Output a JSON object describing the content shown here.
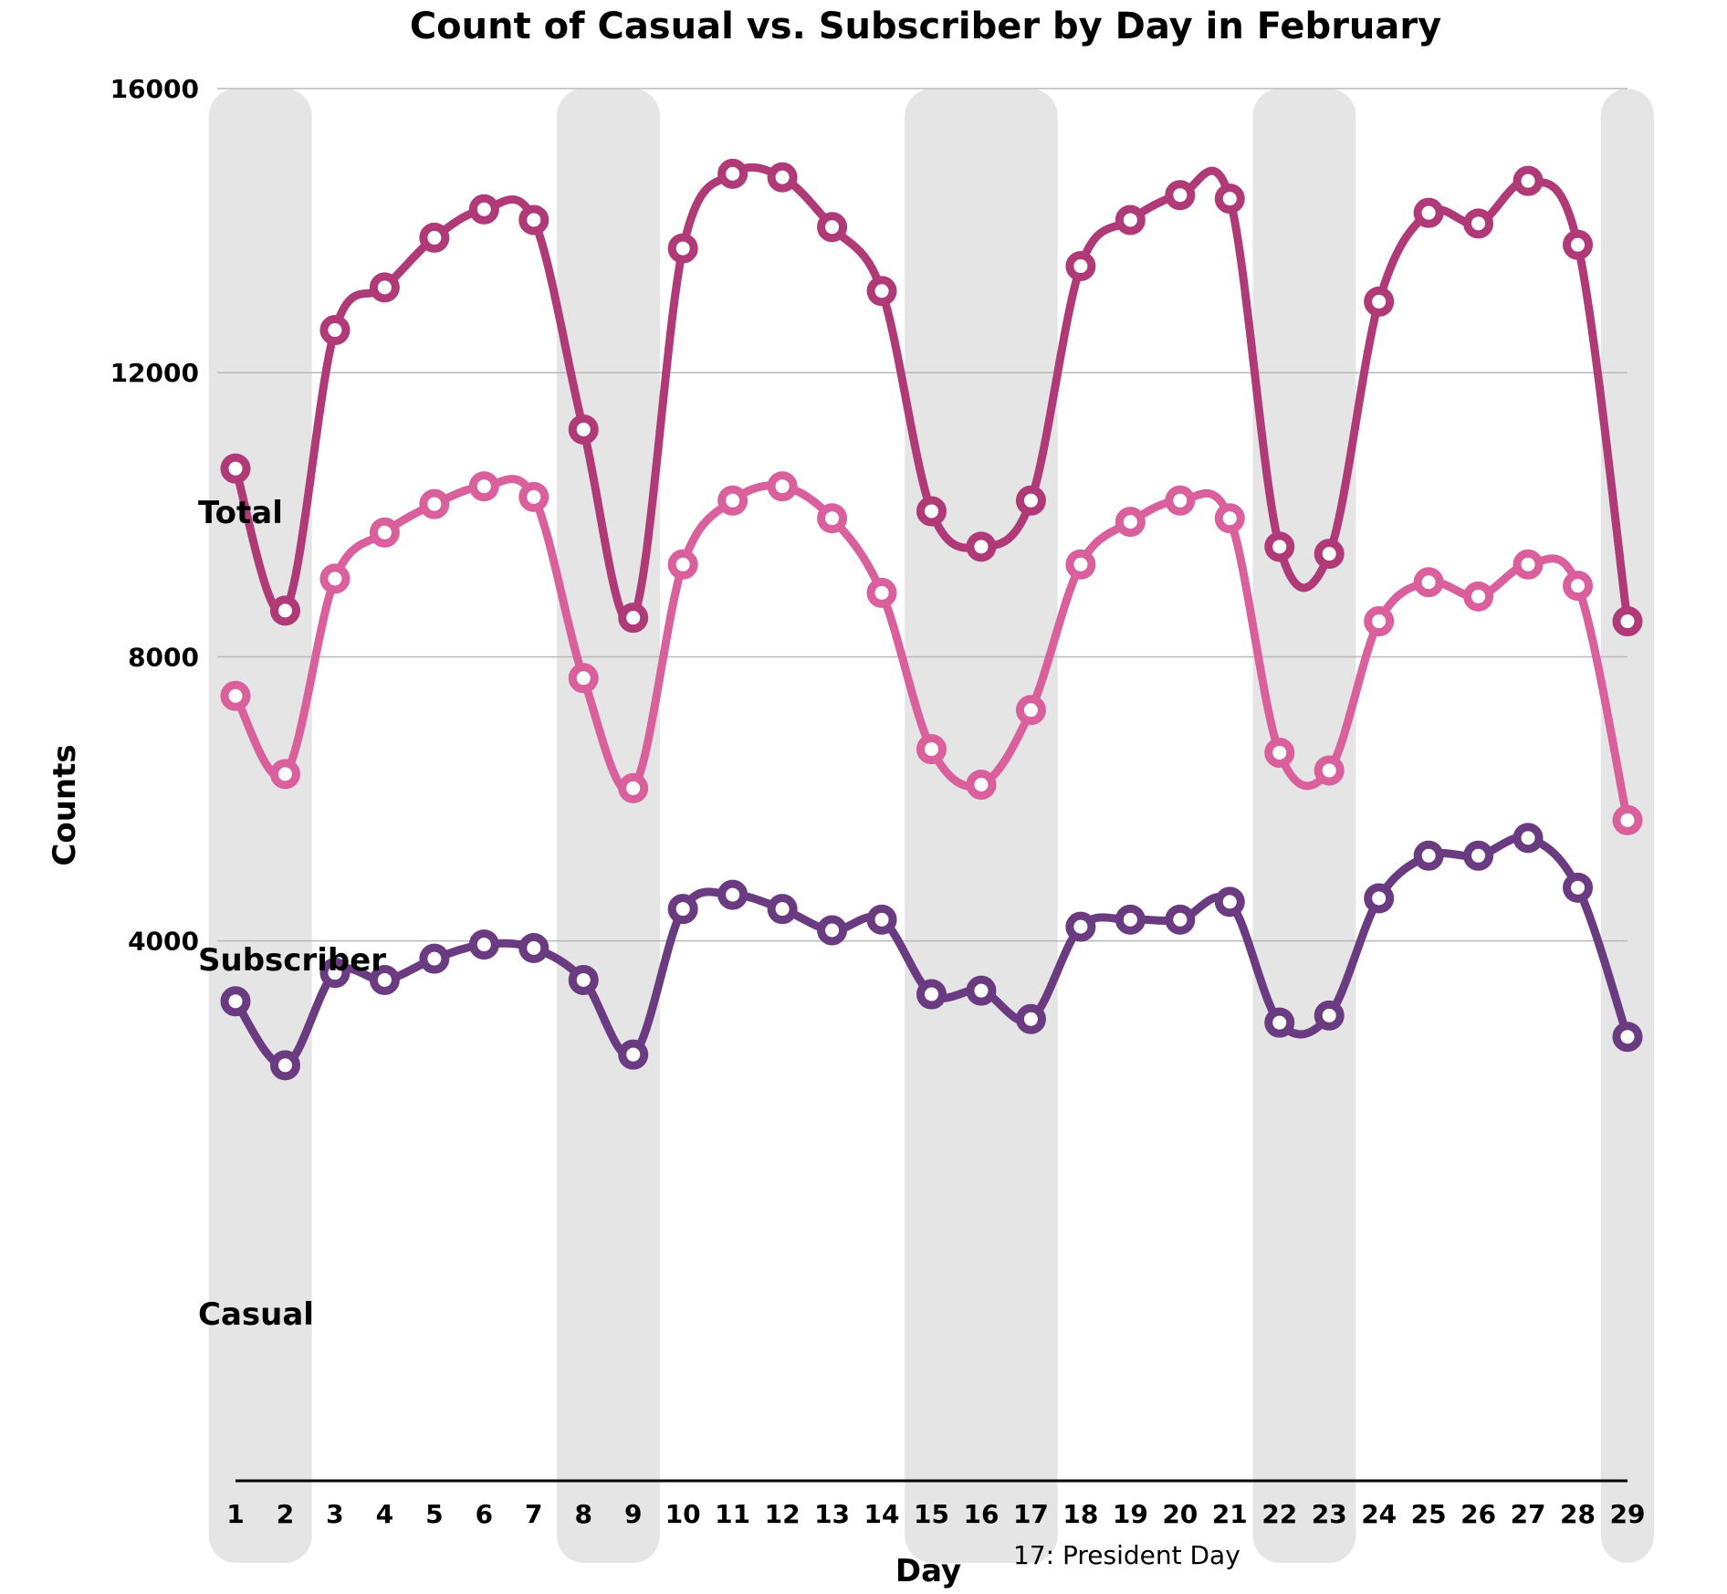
{
  "chart_data": {
    "type": "line",
    "title": "Count of Casual vs. Subscriber by Day in February",
    "xlabel": "Day",
    "ylabel": "Counts",
    "x": [
      1,
      2,
      3,
      4,
      5,
      6,
      7,
      8,
      9,
      10,
      11,
      12,
      13,
      14,
      15,
      16,
      17,
      18,
      19,
      20,
      21,
      22,
      23,
      24,
      25,
      26,
      27,
      28,
      29
    ],
    "ylim": [
      -3600,
      16000
    ],
    "yticks": [
      4000,
      8000,
      12000,
      16000
    ],
    "grid": true,
    "weekend_bands": [
      [
        1,
        2
      ],
      [
        8,
        9
      ],
      [
        15,
        17
      ],
      [
        22,
        23
      ],
      [
        29,
        29
      ]
    ],
    "annotation": "17: President Day",
    "series": [
      {
        "name": "Total",
        "color": "#b03a78",
        "values": [
          10650,
          8650,
          12600,
          13200,
          13900,
          14300,
          14150,
          11200,
          8550,
          13750,
          14800,
          14750,
          14050,
          13150,
          10050,
          9550,
          10200,
          13500,
          14150,
          14500,
          14450,
          9550,
          9450,
          13000,
          14250,
          14100,
          14700,
          13800,
          8500
        ]
      },
      {
        "name": "Subscriber",
        "color": "#d9609c",
        "values": [
          7450,
          6350,
          9100,
          9750,
          10150,
          10400,
          10250,
          7700,
          6150,
          9300,
          10200,
          10400,
          9950,
          8900,
          6700,
          6200,
          7250,
          9300,
          9900,
          10200,
          9950,
          6650,
          6400,
          8500,
          9050,
          8850,
          9300,
          9000,
          5700
        ]
      },
      {
        "name": "Casual",
        "color": "#6b3b82",
        "values": [
          3150,
          2250,
          3550,
          3450,
          3750,
          3950,
          3900,
          3450,
          2400,
          4450,
          4650,
          4450,
          4150,
          4300,
          3250,
          3300,
          2900,
          4200,
          4300,
          4300,
          4550,
          2850,
          2950,
          4600,
          5200,
          5200,
          5450,
          4750,
          2650
        ]
      }
    ]
  }
}
